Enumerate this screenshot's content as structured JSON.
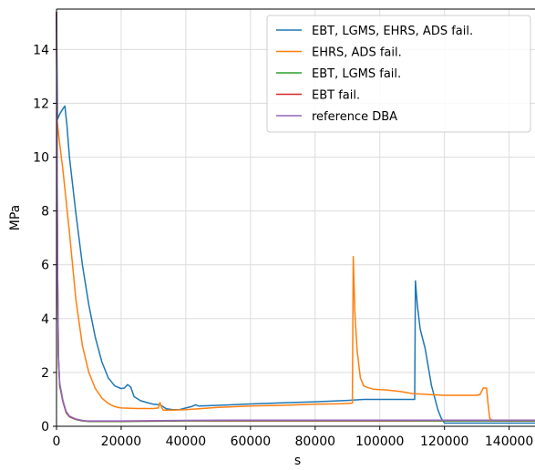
{
  "chart_data": {
    "type": "line",
    "title": "",
    "xlabel": "s",
    "ylabel": "MPa",
    "xlim": [
      0,
      148000
    ],
    "ylim": [
      0,
      15.5
    ],
    "xticks": [
      0,
      20000,
      40000,
      60000,
      80000,
      100000,
      120000,
      140000
    ],
    "yticks": [
      0,
      2,
      4,
      6,
      8,
      10,
      12,
      14
    ],
    "grid": true,
    "legend_position": "top-right",
    "series": [
      {
        "name": "EBT, LGMS, EHRS, ADS fail.",
        "color": "#1f77b4",
        "points": [
          [
            0,
            15.4
          ],
          [
            300,
            11.4
          ],
          [
            1000,
            11.6
          ],
          [
            2000,
            11.8
          ],
          [
            2600,
            11.9
          ],
          [
            3200,
            11.2
          ],
          [
            4000,
            10.0
          ],
          [
            6000,
            7.9
          ],
          [
            8000,
            6.0
          ],
          [
            10000,
            4.5
          ],
          [
            12000,
            3.3
          ],
          [
            14000,
            2.4
          ],
          [
            16000,
            1.8
          ],
          [
            18000,
            1.5
          ],
          [
            20000,
            1.4
          ],
          [
            21000,
            1.42
          ],
          [
            22000,
            1.55
          ],
          [
            23000,
            1.45
          ],
          [
            24000,
            1.1
          ],
          [
            26000,
            0.95
          ],
          [
            28000,
            0.88
          ],
          [
            30000,
            0.82
          ],
          [
            32000,
            0.8
          ],
          [
            34000,
            0.65
          ],
          [
            36000,
            0.62
          ],
          [
            38000,
            0.62
          ],
          [
            40000,
            0.68
          ],
          [
            42000,
            0.74
          ],
          [
            43000,
            0.8
          ],
          [
            44000,
            0.75
          ],
          [
            50000,
            0.78
          ],
          [
            60000,
            0.83
          ],
          [
            70000,
            0.87
          ],
          [
            80000,
            0.91
          ],
          [
            90000,
            0.96
          ],
          [
            95000,
            1.0
          ],
          [
            100000,
            1.0
          ],
          [
            105000,
            1.0
          ],
          [
            110000,
            1.0
          ],
          [
            110800,
            1.0
          ],
          [
            111000,
            5.4
          ],
          [
            111600,
            4.5
          ],
          [
            112500,
            3.6
          ],
          [
            114000,
            2.9
          ],
          [
            116000,
            1.5
          ],
          [
            118000,
            0.6
          ],
          [
            119000,
            0.3
          ],
          [
            120000,
            0.12
          ],
          [
            130000,
            0.12
          ],
          [
            148000,
            0.12
          ]
        ]
      },
      {
        "name": "EHRS, ADS fail.",
        "color": "#ff7f0e",
        "points": [
          [
            0,
            11.6
          ],
          [
            500,
            11.0
          ],
          [
            1000,
            10.5
          ],
          [
            2000,
            9.5
          ],
          [
            4000,
            7.2
          ],
          [
            6000,
            4.7
          ],
          [
            8000,
            3.0
          ],
          [
            10000,
            2.0
          ],
          [
            12000,
            1.4
          ],
          [
            14000,
            1.05
          ],
          [
            16000,
            0.85
          ],
          [
            18000,
            0.73
          ],
          [
            19000,
            0.7
          ],
          [
            20000,
            0.68
          ],
          [
            25000,
            0.66
          ],
          [
            30000,
            0.66
          ],
          [
            31500,
            0.68
          ],
          [
            32000,
            0.88
          ],
          [
            32500,
            0.7
          ],
          [
            33000,
            0.6
          ],
          [
            36000,
            0.6
          ],
          [
            40000,
            0.62
          ],
          [
            45000,
            0.66
          ],
          [
            50000,
            0.7
          ],
          [
            60000,
            0.75
          ],
          [
            70000,
            0.78
          ],
          [
            80000,
            0.82
          ],
          [
            88000,
            0.84
          ],
          [
            91500,
            0.86
          ],
          [
            91800,
            6.3
          ],
          [
            92300,
            4.2
          ],
          [
            93000,
            2.8
          ],
          [
            94000,
            1.8
          ],
          [
            95000,
            1.5
          ],
          [
            96000,
            1.45
          ],
          [
            98000,
            1.38
          ],
          [
            100000,
            1.36
          ],
          [
            102000,
            1.35
          ],
          [
            106000,
            1.3
          ],
          [
            110000,
            1.22
          ],
          [
            115000,
            1.18
          ],
          [
            120000,
            1.15
          ],
          [
            125000,
            1.15
          ],
          [
            130000,
            1.15
          ],
          [
            131000,
            1.18
          ],
          [
            132000,
            1.42
          ],
          [
            133000,
            1.42
          ],
          [
            133500,
            0.8
          ],
          [
            134000,
            0.3
          ],
          [
            135000,
            0.2
          ],
          [
            148000,
            0.2
          ]
        ]
      },
      {
        "name": "EBT, LGMS fail.",
        "color": "#2ca02c",
        "points": [
          [
            0,
            15.4
          ],
          [
            300,
            6.0
          ],
          [
            600,
            2.5
          ],
          [
            1000,
            1.5
          ],
          [
            2000,
            0.9
          ],
          [
            3000,
            0.5
          ],
          [
            4000,
            0.35
          ],
          [
            6000,
            0.25
          ],
          [
            8000,
            0.2
          ],
          [
            10000,
            0.18
          ],
          [
            20000,
            0.18
          ],
          [
            40000,
            0.2
          ],
          [
            60000,
            0.2
          ],
          [
            80000,
            0.2
          ],
          [
            100000,
            0.2
          ],
          [
            120000,
            0.2
          ],
          [
            148000,
            0.2
          ]
        ]
      },
      {
        "name": "EBT fail.",
        "color": "#d62728",
        "points": [
          [
            0,
            15.4
          ],
          [
            300,
            6.0
          ],
          [
            600,
            2.6
          ],
          [
            1000,
            1.55
          ],
          [
            2000,
            0.92
          ],
          [
            3000,
            0.52
          ],
          [
            4000,
            0.36
          ],
          [
            6000,
            0.26
          ],
          [
            8000,
            0.21
          ],
          [
            10000,
            0.19
          ],
          [
            20000,
            0.19
          ],
          [
            40000,
            0.21
          ],
          [
            60000,
            0.21
          ],
          [
            80000,
            0.21
          ],
          [
            100000,
            0.21
          ],
          [
            120000,
            0.22
          ],
          [
            148000,
            0.22
          ]
        ]
      },
      {
        "name": "reference DBA",
        "color": "#9467bd",
        "points": [
          [
            0,
            15.4
          ],
          [
            300,
            6.1
          ],
          [
            600,
            2.6
          ],
          [
            1000,
            1.6
          ],
          [
            2000,
            0.95
          ],
          [
            3000,
            0.55
          ],
          [
            4000,
            0.38
          ],
          [
            6000,
            0.27
          ],
          [
            8000,
            0.22
          ],
          [
            9000,
            0.2
          ],
          [
            10000,
            0.2
          ],
          [
            20000,
            0.2
          ],
          [
            40000,
            0.22
          ],
          [
            60000,
            0.23
          ],
          [
            80000,
            0.23
          ],
          [
            100000,
            0.23
          ],
          [
            120000,
            0.23
          ],
          [
            148000,
            0.23
          ]
        ]
      }
    ]
  }
}
